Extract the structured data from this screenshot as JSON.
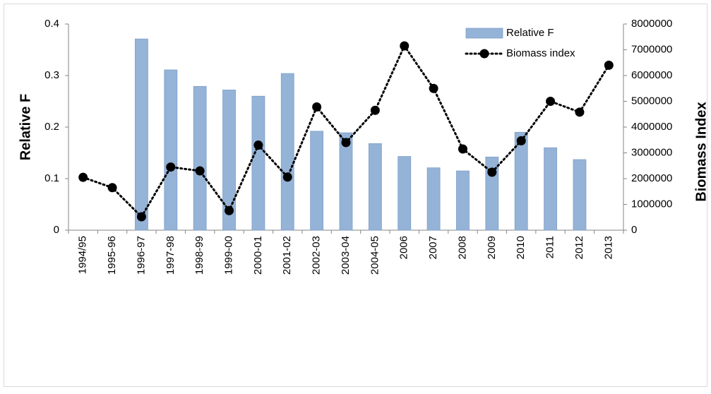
{
  "chart_data": {
    "type": "bar-line",
    "y_label": "Relative F",
    "y2_label": "Biomass Index",
    "categories": [
      "1994/95",
      "1995-96",
      "1996-97",
      "1997-98",
      "1998-99",
      "1999-00",
      "2000-01",
      "2001-02",
      "2002-03",
      "2003-04",
      "2004-05",
      "2006",
      "2007",
      "2008",
      "2009",
      "2010",
      "2011",
      "2012",
      "2013"
    ],
    "series": [
      {
        "name": "Relative F",
        "type": "bar",
        "color": "#95b3d7",
        "values": [
          null,
          null,
          0.371,
          0.311,
          0.279,
          0.272,
          0.26,
          0.304,
          0.192,
          0.189,
          0.168,
          0.143,
          0.121,
          0.115,
          0.142,
          0.19,
          0.16,
          0.137,
          null
        ]
      },
      {
        "name": "Biomass index",
        "type": "line",
        "axis": "y2",
        "color": "#000000",
        "values": [
          2050000,
          1650000,
          520000,
          2450000,
          2300000,
          760000,
          3300000,
          2060000,
          4780000,
          3400000,
          4650000,
          7150000,
          5500000,
          3150000,
          2250000,
          3470000,
          5000000,
          4580000,
          6400000
        ]
      }
    ],
    "ylim": [
      0,
      0.4
    ],
    "yticks": [
      0,
      0.1,
      0.2,
      0.3,
      0.4
    ],
    "y2lim": [
      0,
      8000000
    ],
    "y2ticks": [
      0,
      1000000,
      2000000,
      3000000,
      4000000,
      5000000,
      6000000,
      7000000,
      8000000
    ],
    "legend": "top-right"
  }
}
